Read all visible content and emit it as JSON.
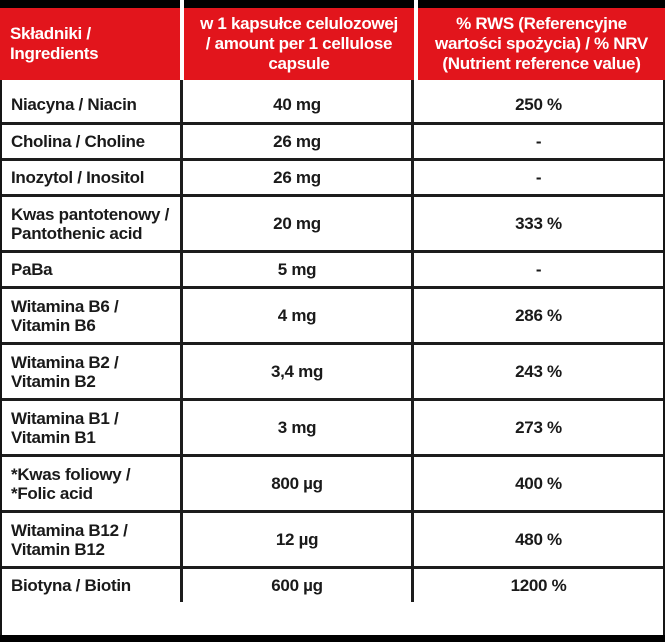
{
  "colors": {
    "header_red": "#e2151c",
    "border_black": "#1d1d1d",
    "header_text": "#ffffff",
    "body_text": "#1a1a1a"
  },
  "table": {
    "header": {
      "ingredients": "Składniki /\nIngredients",
      "amount": "w 1 kapsułce celulozowej\n/ amount per 1 cellulose\ncapsule",
      "nrv": "% RWS (Referencyjne\nwartości spożycia) / % NRV\n(Nutrient reference value)"
    },
    "rows": [
      {
        "ingredient": "Niacyna / Niacin",
        "amount": "40 mg",
        "nrv": "250 %"
      },
      {
        "ingredient": "Cholina / Choline",
        "amount": "26 mg",
        "nrv": "-"
      },
      {
        "ingredient": "Inozytol / Inositol",
        "amount": "26 mg",
        "nrv": "-"
      },
      {
        "ingredient": "Kwas pantotenowy /\nPantothenic acid",
        "amount": "20 mg",
        "nrv": "333 %"
      },
      {
        "ingredient": "PaBa",
        "amount": "5 mg",
        "nrv": "-"
      },
      {
        "ingredient": "Witamina B6 /\nVitamin B6",
        "amount": "4 mg",
        "nrv": "286 %"
      },
      {
        "ingredient": "Witamina B2 /\nVitamin B2",
        "amount": "3,4 mg",
        "nrv": "243 %"
      },
      {
        "ingredient": "Witamina B1 /\nVitamin B1",
        "amount": "3 mg",
        "nrv": "273 %"
      },
      {
        "ingredient": "*Kwas foliowy /\n*Folic acid",
        "amount": "800 µg",
        "nrv": "400 %"
      },
      {
        "ingredient": "Witamina B12 /\nVitamin B12",
        "amount": "12 µg",
        "nrv": "480 %"
      },
      {
        "ingredient": "Biotyna / Biotin",
        "amount": "600 µg",
        "nrv": "1200 %"
      }
    ]
  }
}
